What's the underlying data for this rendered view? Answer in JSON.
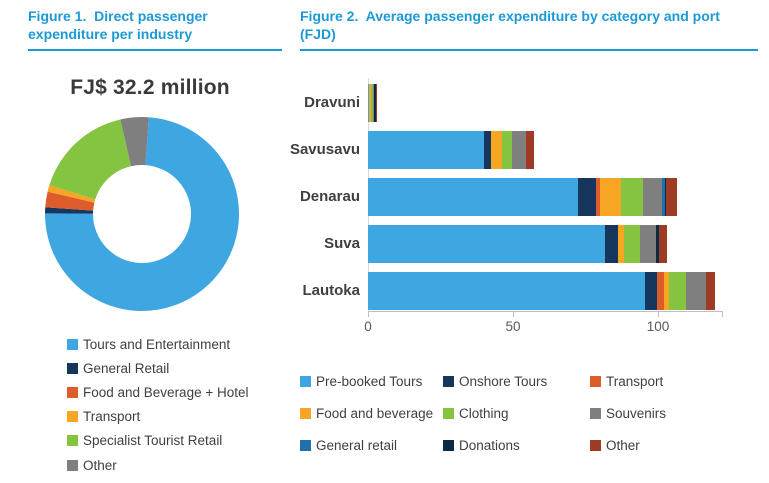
{
  "figure1": {
    "title": "Figure 1.  Direct passenger expenditure per industry",
    "accent_color": "#1C9AD6",
    "donut_title": "FJ$ 32.2 million"
  },
  "figure2": {
    "title": "Figure 2.  Average passenger expenditure by category and port (FJD)",
    "accent_color": "#1C9AD6"
  },
  "chart_data": [
    {
      "type": "pie",
      "subtype": "donut",
      "title": "FJ$ 32.2 million",
      "start_angle_deg": 4,
      "categories": [
        "Tours and Entertainment",
        "General Retail",
        "Food and Beverage + Hotel",
        "Transport",
        "Specialist Tourist Retail",
        "Other"
      ],
      "values_percent": [
        74.0,
        1.0,
        2.6,
        1.1,
        16.6,
        4.7
      ],
      "colors": [
        "#3EA6E0",
        "#16365D",
        "#DD5C2B",
        "#F6A623",
        "#85C441",
        "#7F7F7F"
      ],
      "legend_position": "bottom-left"
    },
    {
      "type": "bar",
      "orientation": "horizontal",
      "stacked": true,
      "title": "Average passenger expenditure by category and port (FJD)",
      "categories": [
        "Dravuni",
        "Savusavu",
        "Denarau",
        "Suva",
        "Lautoka"
      ],
      "series": [
        {
          "name": "Pre-booked Tours",
          "color": "#3EA6E0",
          "values": [
            0.3,
            40.0,
            72.5,
            81.5,
            95.3
          ]
        },
        {
          "name": "Onshore Tours",
          "color": "#16365D",
          "values": [
            0,
            2.5,
            6.1,
            4.6,
            4.4
          ]
        },
        {
          "name": "Transport",
          "color": "#DD5C2B",
          "values": [
            0,
            0,
            1.5,
            0,
            2.3
          ]
        },
        {
          "name": "Food and beverage",
          "color": "#F6A623",
          "values": [
            0.8,
            3.7,
            7.2,
            2.3,
            1.9
          ]
        },
        {
          "name": "Clothing",
          "color": "#85C441",
          "values": [
            0.7,
            3.5,
            7.3,
            5.2,
            5.8
          ]
        },
        {
          "name": "Souvenirs",
          "color": "#7F7F7F",
          "values": [
            0.2,
            4.6,
            6.6,
            5.8,
            6.9
          ]
        },
        {
          "name": "General retail",
          "color": "#2070AE",
          "values": [
            0,
            0,
            1.1,
            0,
            0
          ]
        },
        {
          "name": "Donations",
          "color": "#0C2A44",
          "values": [
            0.7,
            0,
            0.5,
            0.8,
            0
          ]
        },
        {
          "name": "Other",
          "color": "#9E3B23",
          "values": [
            0.4,
            2.9,
            3.5,
            2.9,
            2.9
          ]
        }
      ],
      "x_ticks": [
        "0",
        "50",
        "100"
      ],
      "xlim": [
        0,
        122
      ],
      "grid": false,
      "legend_position": "bottom"
    }
  ]
}
